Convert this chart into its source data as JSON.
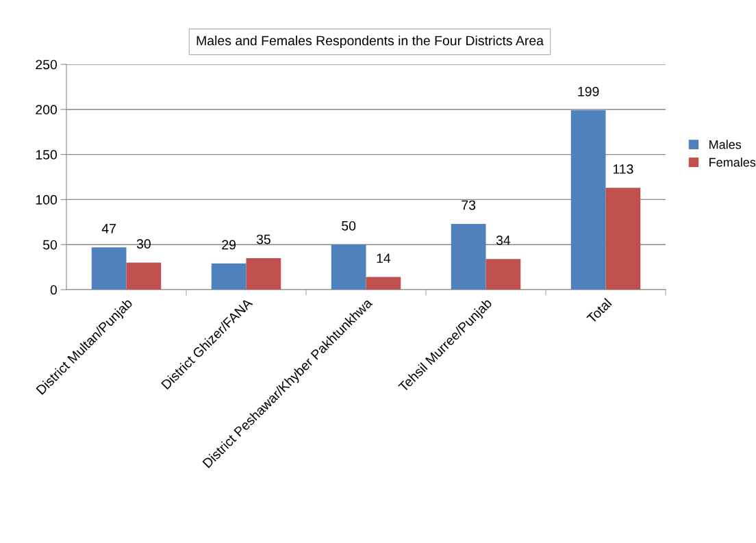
{
  "chart_data": {
    "type": "bar",
    "title": "Males and Females Respondents in the Four Districts Area",
    "categories": [
      "District Multan/Punjab",
      "District Ghizer/FANA",
      "District Peshawar/Khyber Pakhtunkhwa",
      "Tehsil Murree/Punjab",
      "Total"
    ],
    "series": [
      {
        "name": "Males",
        "color": "#4f81bd",
        "values": [
          47,
          29,
          50,
          73,
          199
        ]
      },
      {
        "name": "Females",
        "color": "#c0504d",
        "values": [
          30,
          35,
          14,
          34,
          113
        ]
      }
    ],
    "ylim": [
      0,
      250
    ],
    "yticks": [
      0,
      50,
      100,
      150,
      200,
      250
    ],
    "grid": "y",
    "legend": "right",
    "data_labels": true
  }
}
